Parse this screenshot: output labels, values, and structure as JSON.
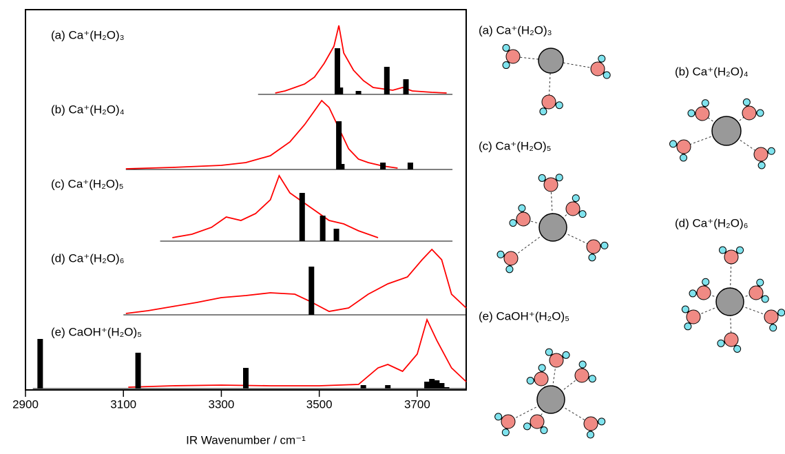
{
  "chart_data": {
    "type": "spectra",
    "xlabel": "IR Wavenumber / cm⁻¹",
    "xlim": [
      2900,
      3800
    ],
    "xticks": [
      2900,
      3100,
      3300,
      3500,
      3700
    ],
    "panels": [
      {
        "label": "(a) Ca⁺(H₂O)₃",
        "color": "#ff0000",
        "baseline": [
          3375,
          3772
        ],
        "x": [
          3410,
          3430,
          3450,
          3470,
          3490,
          3510,
          3530,
          3540,
          3550,
          3570,
          3590,
          3610,
          3630,
          3650,
          3670,
          3690,
          3710,
          3730,
          3760
        ],
        "values": [
          0.02,
          0.05,
          0.1,
          0.15,
          0.25,
          0.45,
          0.7,
          1.0,
          0.6,
          0.35,
          0.2,
          0.1,
          0.08,
          0.06,
          0.1,
          0.05,
          0.04,
          0.03,
          0.02
        ],
        "sticks": {
          "color": "#000000",
          "x": [
            3537,
            3543,
            3580,
            3638,
            3677
          ],
          "values": [
            0.67,
            0.1,
            0.05,
            0.4,
            0.22
          ]
        }
      },
      {
        "label": "(b) Ca⁺(H₂O)₄",
        "color": "#ff0000",
        "baseline": [
          3105,
          3772
        ],
        "x": [
          3105,
          3200,
          3300,
          3350,
          3400,
          3440,
          3470,
          3490,
          3505,
          3520,
          3540,
          3560,
          3580,
          3600,
          3630,
          3660
        ],
        "values": [
          0.01,
          0.03,
          0.06,
          0.1,
          0.2,
          0.4,
          0.65,
          0.85,
          1.0,
          0.9,
          0.6,
          0.3,
          0.15,
          0.1,
          0.05,
          0.02
        ],
        "sticks": {
          "color": "#000000",
          "x": [
            3540,
            3546,
            3630,
            3686
          ],
          "values": [
            0.7,
            0.08,
            0.1,
            0.1
          ]
        }
      },
      {
        "label": "(c) Ca⁺(H₂O)₅",
        "color": "#ff0000",
        "baseline": [
          3175,
          3772
        ],
        "x": [
          3200,
          3240,
          3280,
          3310,
          3340,
          3370,
          3400,
          3418,
          3440,
          3460,
          3490,
          3520,
          3550,
          3580,
          3600,
          3620
        ],
        "values": [
          0.05,
          0.1,
          0.2,
          0.35,
          0.3,
          0.4,
          0.6,
          0.95,
          0.7,
          0.6,
          0.45,
          0.3,
          0.25,
          0.15,
          0.1,
          0.05
        ],
        "sticks": {
          "color": "#000000",
          "x": [
            3465,
            3507,
            3535
          ],
          "values": [
            0.7,
            0.37,
            0.18
          ]
        }
      },
      {
        "label": "(d) Ca⁺(H₂O)₆",
        "color": "#ff0000",
        "baseline": [
          3100,
          3800
        ],
        "x": [
          3105,
          3150,
          3200,
          3250,
          3300,
          3350,
          3400,
          3450,
          3480,
          3520,
          3560,
          3600,
          3640,
          3680,
          3710,
          3730,
          3750,
          3770,
          3800
        ],
        "values": [
          0.02,
          0.06,
          0.12,
          0.18,
          0.25,
          0.28,
          0.32,
          0.3,
          0.2,
          0.05,
          0.1,
          0.3,
          0.45,
          0.55,
          0.8,
          0.95,
          0.8,
          0.3,
          0.1
        ],
        "sticks": {
          "color": "#000000",
          "x": [
            3484
          ],
          "values": [
            0.7
          ]
        }
      },
      {
        "label": "(e) CaOH⁺(H₂O)₅",
        "color": "#ff0000",
        "baseline": [
          2915,
          3800
        ],
        "x": [
          3110,
          3200,
          3300,
          3400,
          3500,
          3580,
          3620,
          3640,
          3670,
          3700,
          3720,
          3740,
          3770,
          3800
        ],
        "values": [
          0.02,
          0.04,
          0.05,
          0.04,
          0.04,
          0.06,
          0.3,
          0.35,
          0.25,
          0.5,
          1.0,
          0.7,
          0.3,
          0.1
        ],
        "sticks": {
          "color": "#000000",
          "x": [
            2930,
            3130,
            3350,
            3590,
            3640,
            3720,
            3730,
            3740,
            3750,
            3760
          ],
          "values": [
            0.72,
            0.52,
            0.3,
            0.05,
            0.05,
            0.1,
            0.14,
            0.12,
            0.08,
            0.02
          ]
        }
      }
    ]
  }
}
